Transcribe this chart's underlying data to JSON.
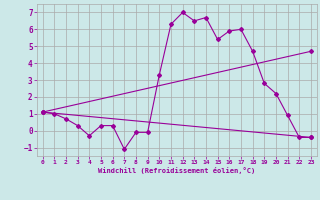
{
  "background_color": "#cce8e8",
  "grid_color": "#aaaaaa",
  "line_color": "#990099",
  "xlim": [
    -0.5,
    23.5
  ],
  "ylim": [
    -1.5,
    7.5
  ],
  "yticks": [
    -1,
    0,
    1,
    2,
    3,
    4,
    5,
    6,
    7
  ],
  "xticks": [
    0,
    1,
    2,
    3,
    4,
    5,
    6,
    7,
    8,
    9,
    10,
    11,
    12,
    13,
    14,
    15,
    16,
    17,
    18,
    19,
    20,
    21,
    22,
    23
  ],
  "xlabel": "Windchill (Refroidissement éolien,°C)",
  "series1_x": [
    0,
    1,
    2,
    3,
    4,
    5,
    6,
    7,
    8,
    9,
    10,
    11,
    12,
    13,
    14,
    15,
    16,
    17,
    18,
    19,
    20,
    21,
    22,
    23
  ],
  "series1_y": [
    1.1,
    1.0,
    0.7,
    0.3,
    -0.3,
    0.3,
    0.3,
    -1.1,
    -0.1,
    -0.1,
    3.3,
    6.3,
    7.0,
    6.5,
    6.7,
    5.4,
    5.9,
    6.0,
    4.7,
    2.8,
    2.2,
    0.9,
    -0.4,
    -0.4
  ],
  "series2_x": [
    0,
    23
  ],
  "series2_y": [
    1.1,
    4.7
  ],
  "series3_x": [
    0,
    23
  ],
  "series3_y": [
    1.1,
    -0.4
  ]
}
